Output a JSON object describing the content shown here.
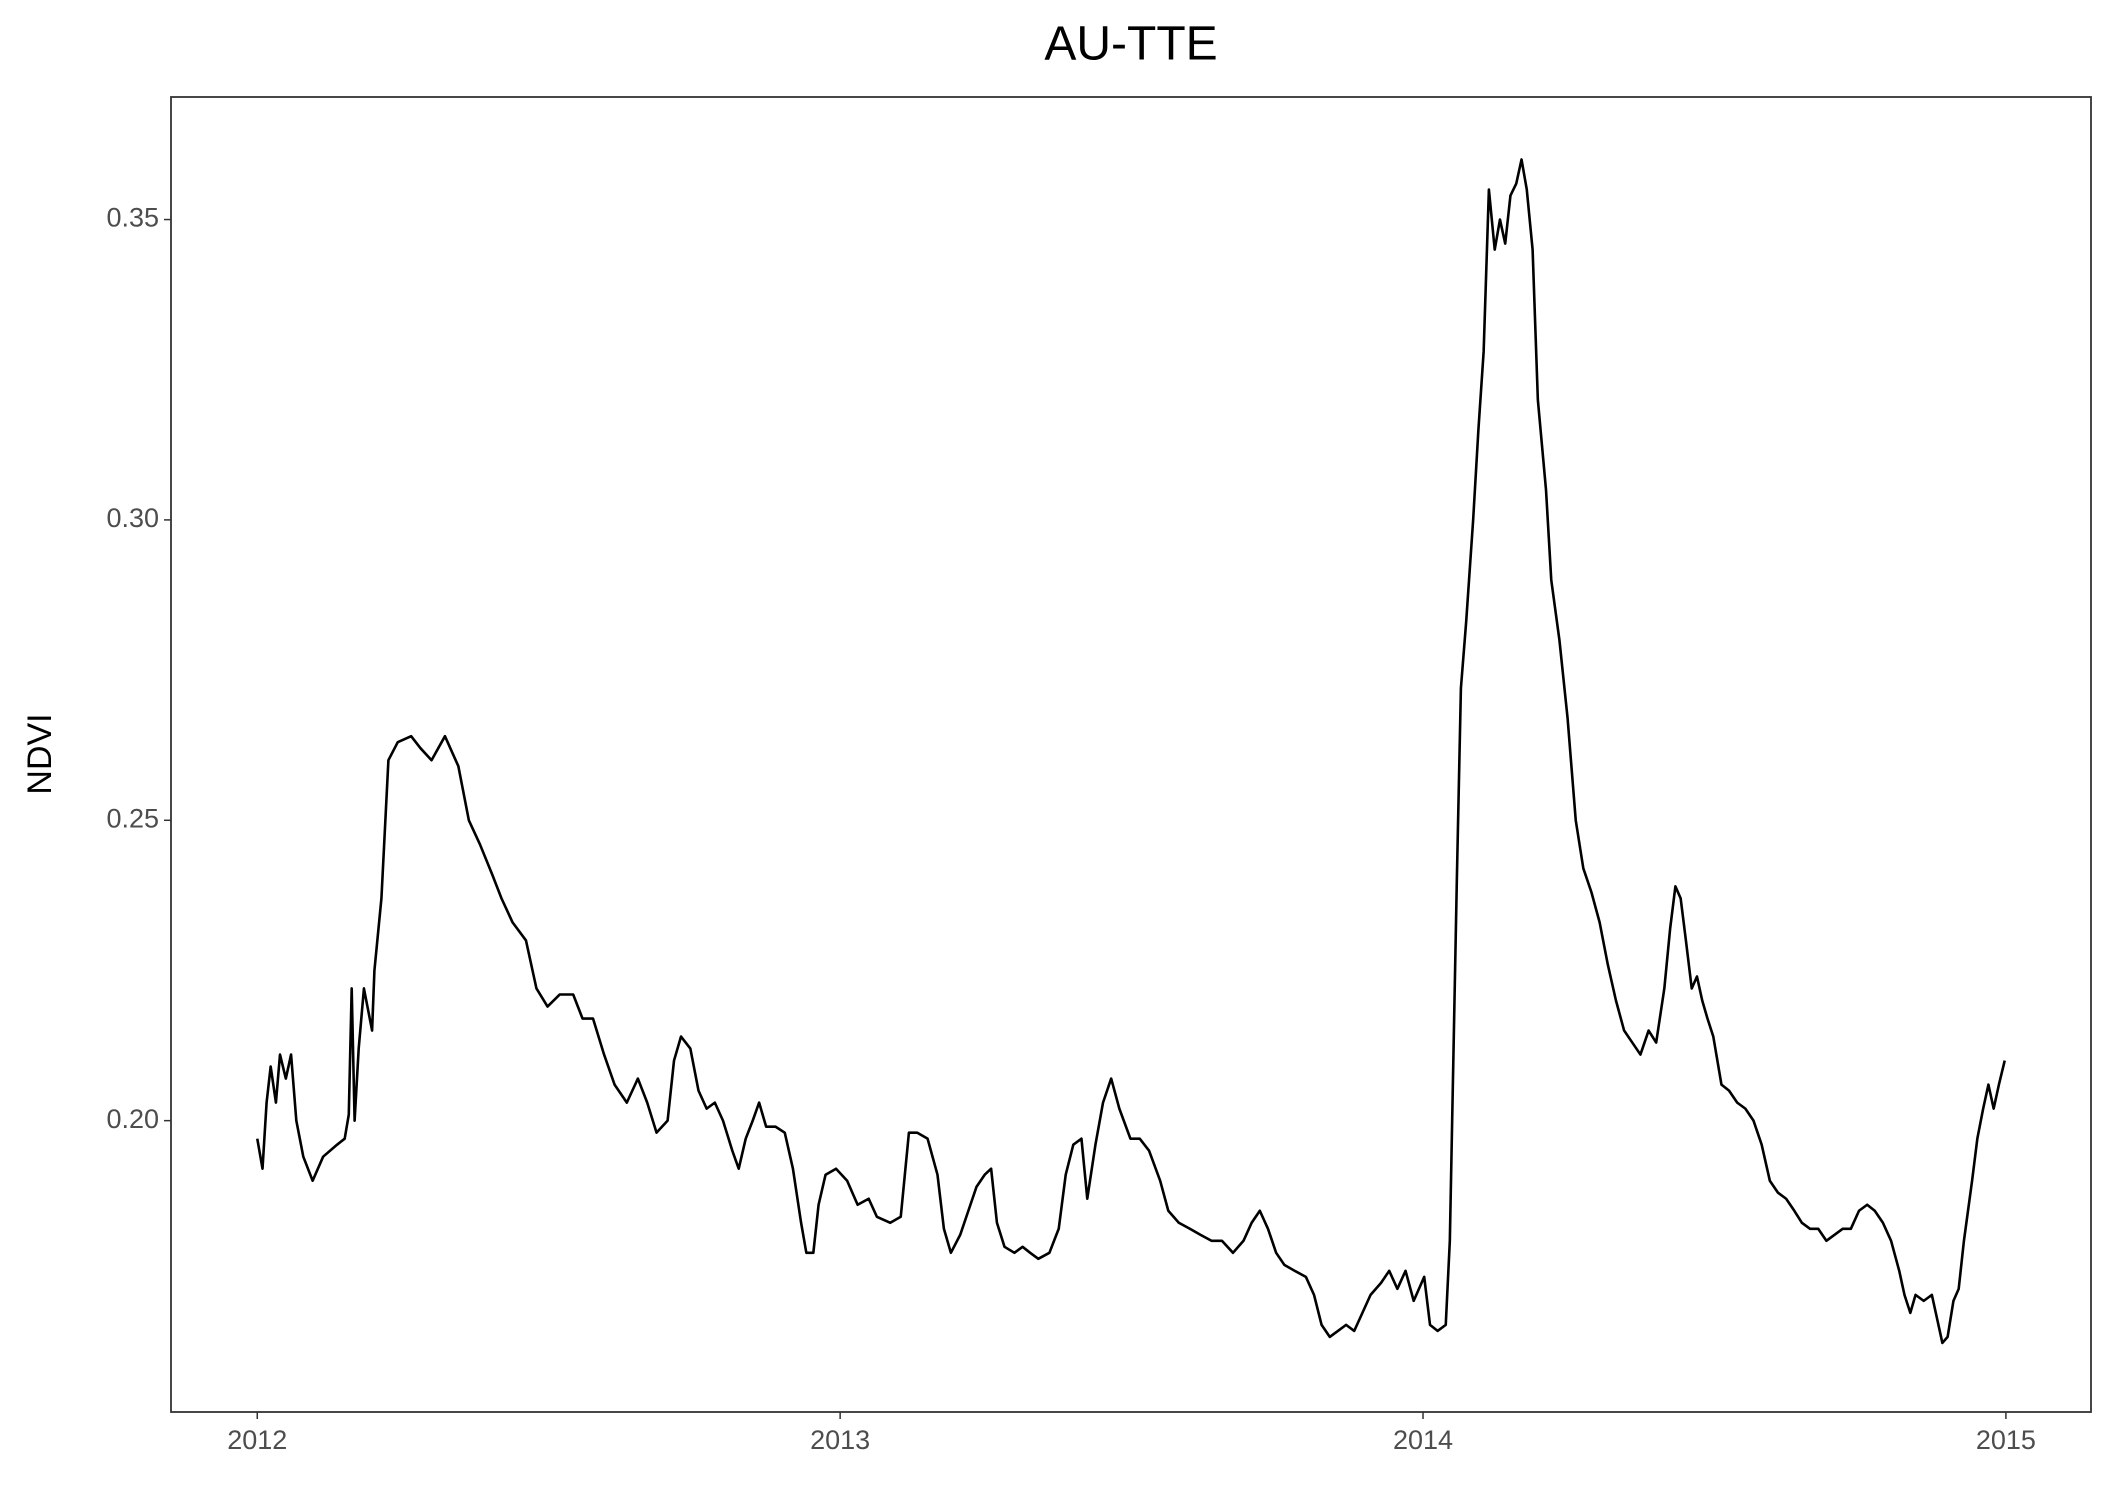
{
  "chart_data": {
    "type": "line",
    "title": "AU-TTE",
    "y_label": "NDVI",
    "xlim": [
      2011.852,
      2015.146
    ],
    "xticks": [
      2012,
      2013,
      2014,
      2015
    ],
    "ylim": [
      0.1515,
      0.3704
    ],
    "yticks": [
      {
        "value": 0.2,
        "label": "0.20"
      },
      0.25,
      {
        "value": 0.3,
        "label": "0.30"
      },
      0.35
    ],
    "grid": false,
    "color": "#000000",
    "x": [
      2012.0,
      2012.009,
      2012.016,
      2012.023,
      2012.032,
      2012.039,
      2012.049,
      2012.058,
      2012.067,
      2012.079,
      2012.095,
      2012.113,
      2012.137,
      2012.15,
      2012.157,
      2012.162,
      2012.167,
      2012.174,
      2012.183,
      2012.197,
      2012.201,
      2012.213,
      2012.225,
      2012.241,
      2012.264,
      2012.28,
      2012.299,
      2012.322,
      2012.345,
      2012.363,
      2012.382,
      2012.403,
      2012.419,
      2012.438,
      2012.461,
      2012.479,
      2012.498,
      2012.519,
      2012.542,
      2012.558,
      2012.576,
      2012.595,
      2012.613,
      2012.634,
      2012.653,
      2012.669,
      2012.685,
      2012.704,
      2012.715,
      2012.727,
      2012.743,
      2012.757,
      2012.771,
      2012.785,
      2012.799,
      2012.815,
      2012.826,
      2012.838,
      2012.85,
      2012.861,
      2012.873,
      2012.889,
      2012.905,
      2012.919,
      2012.933,
      2012.942,
      2012.954,
      2012.963,
      2012.975,
      2012.993,
      2013.012,
      2013.03,
      2013.049,
      2013.063,
      2013.086,
      2013.104,
      2013.118,
      2013.132,
      2013.15,
      2013.167,
      2013.178,
      2013.19,
      2013.206,
      2013.22,
      2013.234,
      2013.248,
      2013.259,
      2013.269,
      2013.282,
      2013.299,
      2013.313,
      2013.326,
      2013.34,
      2013.359,
      2013.375,
      2013.387,
      2013.4,
      2013.414,
      2013.424,
      2013.438,
      2013.451,
      2013.465,
      2013.479,
      2013.498,
      2013.514,
      2013.53,
      2013.549,
      2013.563,
      2013.581,
      2013.6,
      2013.618,
      2013.637,
      2013.655,
      2013.674,
      2013.692,
      2013.706,
      2013.72,
      2013.734,
      2013.748,
      2013.762,
      2013.78,
      2013.799,
      2013.813,
      2013.826,
      2013.84,
      2013.854,
      2013.868,
      2013.882,
      2013.896,
      2013.91,
      2013.928,
      2013.942,
      2013.956,
      2013.97,
      2013.984,
      2014.002,
      2014.012,
      2014.025,
      2014.039,
      2014.046,
      2014.053,
      2014.058,
      2014.065,
      2014.074,
      2014.086,
      2014.095,
      2014.104,
      2014.113,
      2014.123,
      2014.132,
      2014.141,
      2014.15,
      2014.16,
      2014.169,
      2014.178,
      2014.188,
      2014.197,
      2014.211,
      2014.22,
      2014.234,
      2014.248,
      2014.262,
      2014.275,
      2014.289,
      2014.303,
      2014.317,
      2014.331,
      2014.345,
      2014.359,
      2014.373,
      2014.387,
      2014.4,
      2014.414,
      2014.424,
      2014.433,
      2014.442,
      2014.451,
      2014.461,
      2014.47,
      2014.479,
      2014.488,
      2014.498,
      2014.512,
      2014.525,
      2014.539,
      2014.553,
      2014.567,
      2014.581,
      2014.595,
      2014.609,
      2014.623,
      2014.637,
      2014.65,
      2014.664,
      2014.678,
      2014.692,
      2014.706,
      2014.72,
      2014.734,
      2014.748,
      2014.762,
      2014.775,
      2014.789,
      2014.803,
      2014.817,
      2014.826,
      2014.836,
      2014.845,
      2014.859,
      2014.873,
      2014.882,
      2014.891,
      2014.9,
      2014.91,
      2014.919,
      2014.928,
      2014.942,
      2014.951,
      2014.961,
      2014.97,
      2014.979,
      2014.988,
      2014.998
    ],
    "values": [
      0.197,
      0.192,
      0.203,
      0.209,
      0.203,
      0.211,
      0.207,
      0.211,
      0.2,
      0.194,
      0.19,
      0.194,
      0.196,
      0.197,
      0.201,
      0.222,
      0.2,
      0.212,
      0.222,
      0.215,
      0.225,
      0.237,
      0.26,
      0.263,
      0.264,
      0.262,
      0.26,
      0.264,
      0.259,
      0.25,
      0.246,
      0.241,
      0.237,
      0.233,
      0.23,
      0.222,
      0.219,
      0.221,
      0.221,
      0.217,
      0.217,
      0.211,
      0.206,
      0.203,
      0.207,
      0.203,
      0.198,
      0.2,
      0.21,
      0.214,
      0.212,
      0.205,
      0.202,
      0.203,
      0.2,
      0.195,
      0.192,
      0.197,
      0.2,
      0.203,
      0.199,
      0.199,
      0.198,
      0.192,
      0.183,
      0.178,
      0.178,
      0.186,
      0.191,
      0.192,
      0.19,
      0.186,
      0.187,
      0.184,
      0.183,
      0.184,
      0.198,
      0.198,
      0.197,
      0.191,
      0.182,
      0.178,
      0.181,
      0.185,
      0.189,
      0.191,
      0.192,
      0.183,
      0.179,
      0.178,
      0.179,
      0.178,
      0.177,
      0.178,
      0.182,
      0.191,
      0.196,
      0.197,
      0.187,
      0.196,
      0.203,
      0.207,
      0.202,
      0.197,
      0.197,
      0.195,
      0.19,
      0.185,
      0.183,
      0.182,
      0.181,
      0.18,
      0.18,
      0.178,
      0.18,
      0.183,
      0.185,
      0.182,
      0.178,
      0.176,
      0.175,
      0.174,
      0.171,
      0.166,
      0.164,
      0.165,
      0.166,
      0.165,
      0.168,
      0.171,
      0.173,
      0.175,
      0.172,
      0.175,
      0.17,
      0.174,
      0.166,
      0.165,
      0.166,
      0.18,
      0.215,
      0.24,
      0.272,
      0.283,
      0.3,
      0.315,
      0.328,
      0.355,
      0.345,
      0.35,
      0.346,
      0.354,
      0.356,
      0.36,
      0.355,
      0.345,
      0.32,
      0.305,
      0.29,
      0.28,
      0.267,
      0.25,
      0.242,
      0.238,
      0.233,
      0.226,
      0.22,
      0.215,
      0.213,
      0.211,
      0.215,
      0.213,
      0.222,
      0.232,
      0.239,
      0.237,
      0.23,
      0.222,
      0.224,
      0.22,
      0.217,
      0.214,
      0.206,
      0.205,
      0.203,
      0.202,
      0.2,
      0.196,
      0.19,
      0.188,
      0.187,
      0.185,
      0.183,
      0.182,
      0.182,
      0.18,
      0.181,
      0.182,
      0.182,
      0.185,
      0.186,
      0.185,
      0.183,
      0.18,
      0.175,
      0.171,
      0.168,
      0.171,
      0.17,
      0.171,
      0.167,
      0.163,
      0.164,
      0.17,
      0.172,
      0.18,
      0.19,
      0.197,
      0.202,
      0.206,
      0.202,
      0.206,
      0.21
    ]
  }
}
